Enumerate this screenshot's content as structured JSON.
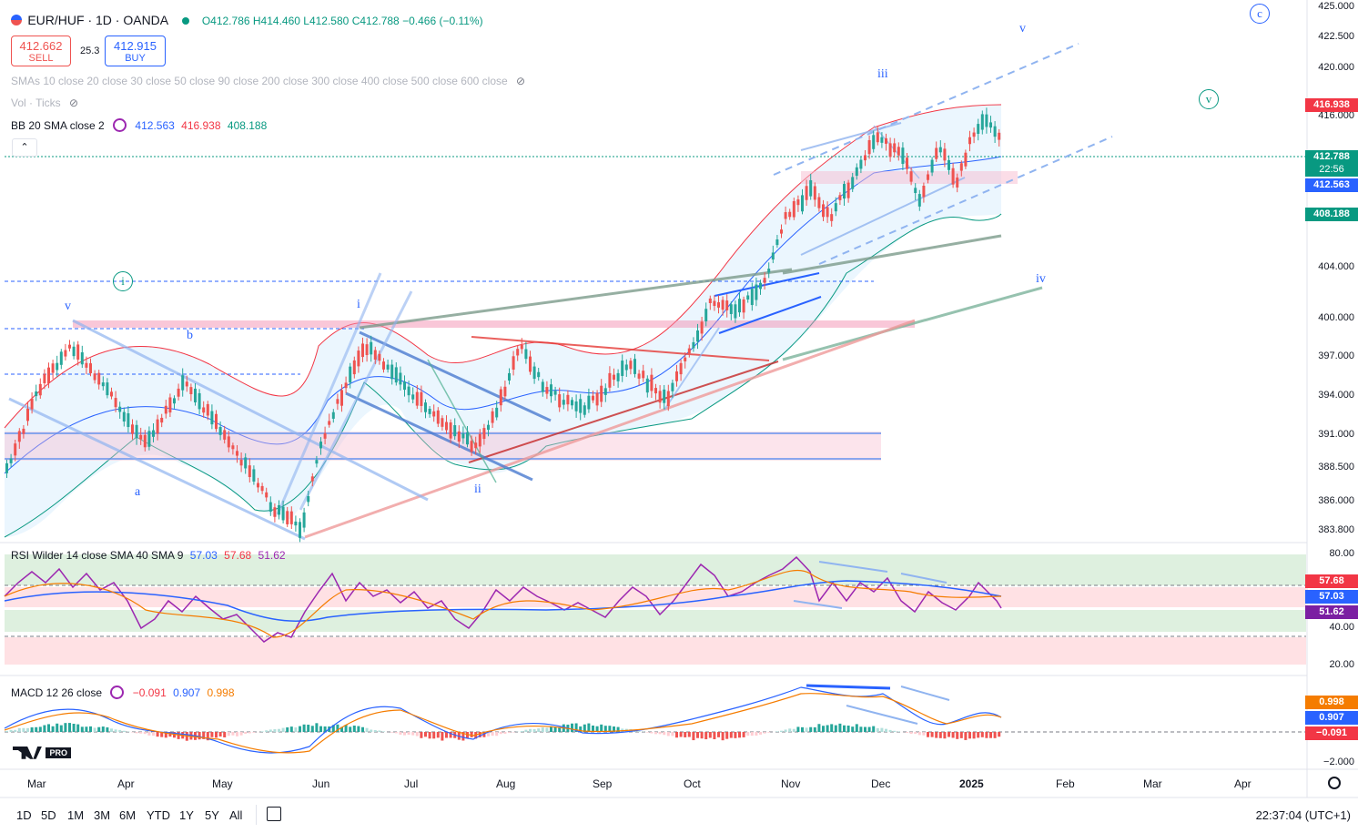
{
  "header": {
    "symbol": "EUR/HUF · 1D · OANDA",
    "open": "O412.786",
    "high": "H414.460",
    "low": "L412.580",
    "close": "C412.788",
    "change": "−0.466 (−0.11%)"
  },
  "trade": {
    "sell_price": "412.662",
    "sell_label": "SELL",
    "spread": "25.3",
    "buy_price": "412.915",
    "buy_label": "BUY"
  },
  "indicators": {
    "smas": "SMAs 10 close 20 close 30 close 50 close 90 close 200 close 300 close 400 close 500 close 600 close",
    "vol": "Vol · Ticks",
    "bb_label": "BB 20 SMA close 2",
    "bb_basis": "412.563",
    "bb_upper": "416.938",
    "bb_lower": "408.188",
    "rsi_label": "RSI Wilder 14 close SMA 40 SMA 9",
    "rsi_v1": "57.03",
    "rsi_v2": "57.68",
    "rsi_v3": "51.62",
    "macd_label": "MACD 12 26 close",
    "macd_v1": "−0.091",
    "macd_v2": "0.907",
    "macd_v3": "0.998"
  },
  "price_axis": [
    "425.000",
    "422.500",
    "420.000",
    "416.000",
    "404.000",
    "400.000",
    "397.000",
    "394.000",
    "391.000",
    "388.500",
    "386.000",
    "383.800"
  ],
  "price_tags": {
    "upper": "416.938",
    "last": "412.788",
    "countdown": "22:56",
    "basis": "412.563",
    "lower": "408.188"
  },
  "rsi_axis": [
    "80.00",
    "40.00",
    "20.00"
  ],
  "rsi_tags": [
    "57.68",
    "57.03",
    "51.62"
  ],
  "macd_axis": [
    "−2.000"
  ],
  "macd_tags": [
    "0.998",
    "0.907",
    "−0.091"
  ],
  "time_axis": [
    "Mar",
    "Apr",
    "May",
    "Jun",
    "Jul",
    "Aug",
    "Sep",
    "Oct",
    "Nov",
    "Dec",
    "2025",
    "Feb",
    "Mar",
    "Apr"
  ],
  "timeframes": [
    "1D",
    "5D",
    "1M",
    "3M",
    "6M",
    "YTD",
    "1Y",
    "5Y",
    "All"
  ],
  "clock": "22:37:04 (UTC+1)",
  "waves": {
    "v1": "v",
    "b": "b",
    "a": "a",
    "i1": "i",
    "i2": "i",
    "ii": "ii",
    "iii": "iii",
    "iv": "iv",
    "v2": "v",
    "c": "c",
    "v3": "v"
  },
  "logo": "PRO",
  "colors": {
    "up": "#26a69a",
    "down": "#ef5350",
    "bb_upper": "#f23645",
    "bb_basis": "#2962ff",
    "bb_lower": "#089981",
    "rsi": "#9c27b0"
  }
}
